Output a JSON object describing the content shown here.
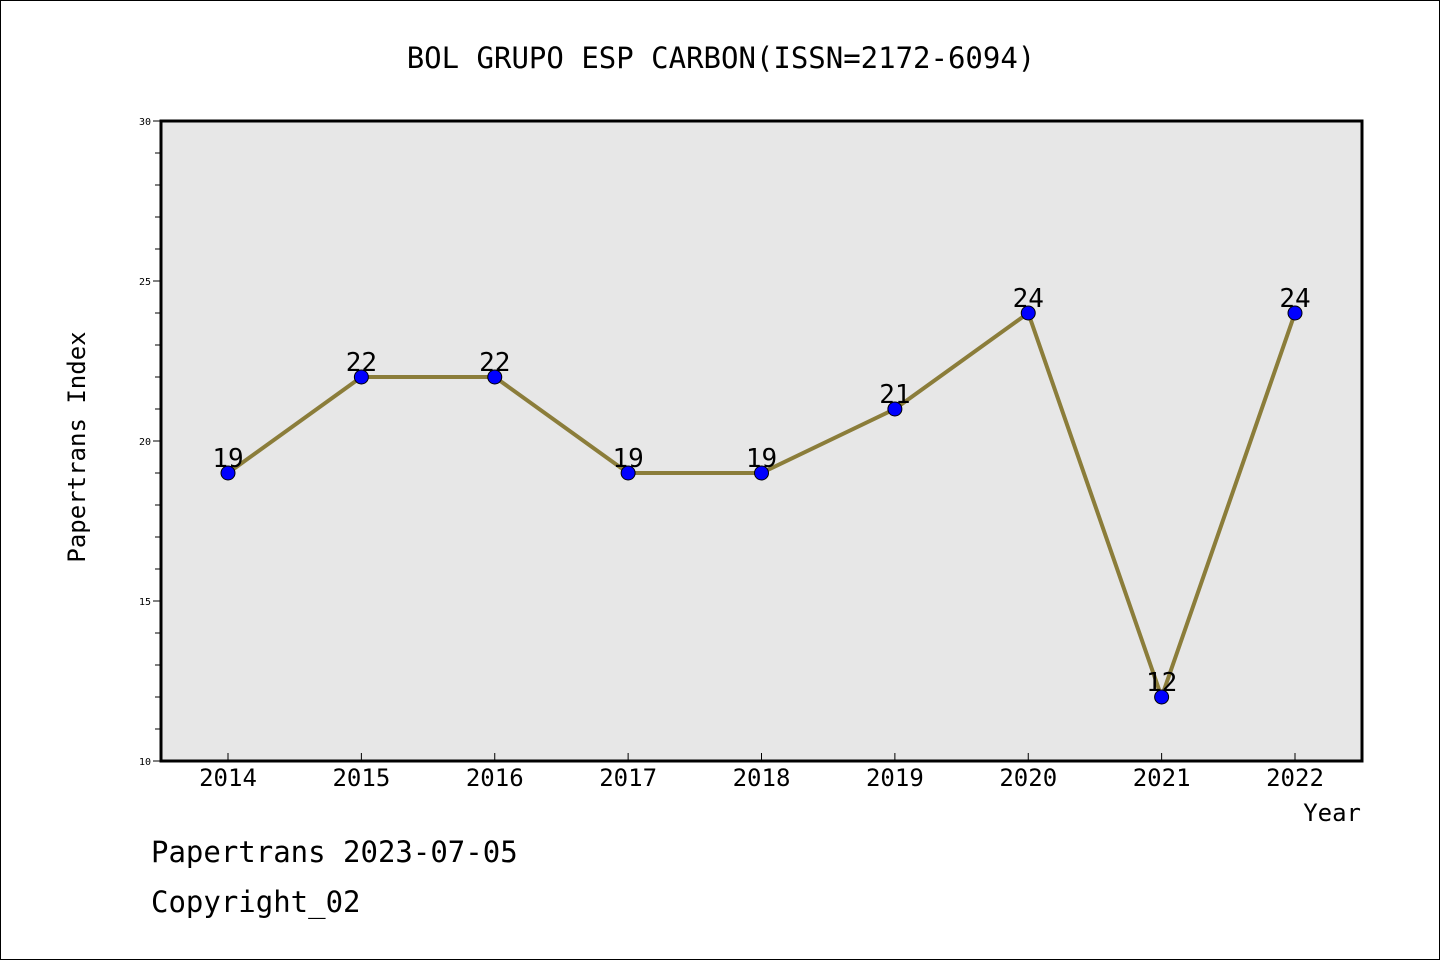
{
  "chart_data": {
    "type": "line",
    "title": "BOL GRUPO ESP CARBON(ISSN=2172-6094)",
    "xlabel": "Year",
    "ylabel": "Papertrans Index",
    "x": [
      "2014",
      "2015",
      "2016",
      "2017",
      "2018",
      "2019",
      "2020",
      "2021",
      "2022"
    ],
    "series": [
      {
        "values": [
          19,
          22,
          22,
          19,
          19,
          21,
          24,
          12,
          24
        ]
      }
    ],
    "ylim": [
      10,
      30
    ],
    "y_ticks": [
      10,
      15,
      20,
      25,
      30
    ],
    "grid": false,
    "legend": "none",
    "line_color": "#8B7D3A",
    "marker_color": "#0000FF",
    "plot_background": "#E7E7E7"
  },
  "footer": {
    "line1": "Papertrans 2023-07-05",
    "line2": "Copyright_02"
  }
}
